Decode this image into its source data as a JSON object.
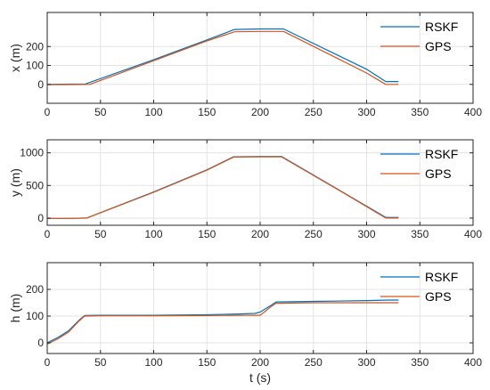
{
  "chart_data": [
    {
      "type": "line",
      "ylabel": "x (m)",
      "xlabel": "",
      "xlim": [
        0,
        400
      ],
      "ylim": [
        -100,
        380
      ],
      "xticks": [
        0,
        50,
        100,
        150,
        200,
        250,
        300,
        350,
        400
      ],
      "yticks": [
        0,
        100,
        200
      ],
      "grid": true,
      "legend": "top-right",
      "series": [
        {
          "name": "RSKF",
          "color": "#0072BD",
          "x": [
            0,
            20,
            36,
            100,
            150,
            176,
            200,
            222,
            300,
            318,
            330
          ],
          "y": [
            0,
            1,
            2,
            130,
            235,
            290,
            293,
            293,
            80,
            15,
            15
          ]
        },
        {
          "name": "GPS",
          "color": "#D95319",
          "x": [
            0,
            20,
            40,
            100,
            150,
            176,
            200,
            222,
            300,
            318,
            330
          ],
          "y": [
            -2,
            -1,
            0,
            125,
            230,
            278,
            280,
            280,
            60,
            0,
            0
          ]
        }
      ]
    },
    {
      "type": "line",
      "ylabel": "y (m)",
      "xlabel": "",
      "xlim": [
        0,
        400
      ],
      "ylim": [
        -110,
        1200
      ],
      "xticks": [
        0,
        50,
        100,
        150,
        200,
        250,
        300,
        350,
        400
      ],
      "yticks": [
        0,
        500,
        1000
      ],
      "grid": true,
      "legend": "top-right",
      "series": [
        {
          "name": "RSKF",
          "color": "#0072BD",
          "x": [
            0,
            20,
            37,
            100,
            150,
            175,
            200,
            220,
            280,
            318,
            330
          ],
          "y": [
            -5,
            -5,
            0,
            400,
            740,
            940,
            945,
            945,
            375,
            10,
            10
          ]
        },
        {
          "name": "GPS",
          "color": "#D95319",
          "x": [
            0,
            20,
            37,
            100,
            150,
            175,
            200,
            220,
            280,
            318,
            330
          ],
          "y": [
            -5,
            -5,
            0,
            395,
            735,
            935,
            940,
            940,
            370,
            0,
            0
          ]
        }
      ]
    },
    {
      "type": "line",
      "ylabel": "h (m)",
      "xlabel": "t (s)",
      "xlim": [
        0,
        400
      ],
      "ylim": [
        -40,
        300
      ],
      "xticks": [
        0,
        50,
        100,
        150,
        200,
        250,
        300,
        350,
        400
      ],
      "yticks": [
        0,
        100,
        200
      ],
      "grid": true,
      "legend": "top-right",
      "series": [
        {
          "name": "RSKF",
          "color": "#0072BD",
          "x": [
            0,
            10,
            20,
            30,
            35,
            50,
            100,
            150,
            180,
            195,
            200,
            210,
            215,
            250,
            300,
            320,
            330
          ],
          "y": [
            0,
            20,
            45,
            85,
            102,
            103,
            103,
            105,
            108,
            110,
            115,
            140,
            153,
            155,
            158,
            160,
            160
          ]
        },
        {
          "name": "GPS",
          "color": "#D95319",
          "x": [
            0,
            10,
            20,
            30,
            35,
            50,
            100,
            150,
            180,
            195,
            200,
            210,
            215,
            250,
            300,
            320,
            330
          ],
          "y": [
            -5,
            15,
            40,
            82,
            100,
            101,
            101,
            102,
            103,
            103,
            103,
            135,
            148,
            150,
            150,
            150,
            150
          ]
        }
      ]
    }
  ]
}
